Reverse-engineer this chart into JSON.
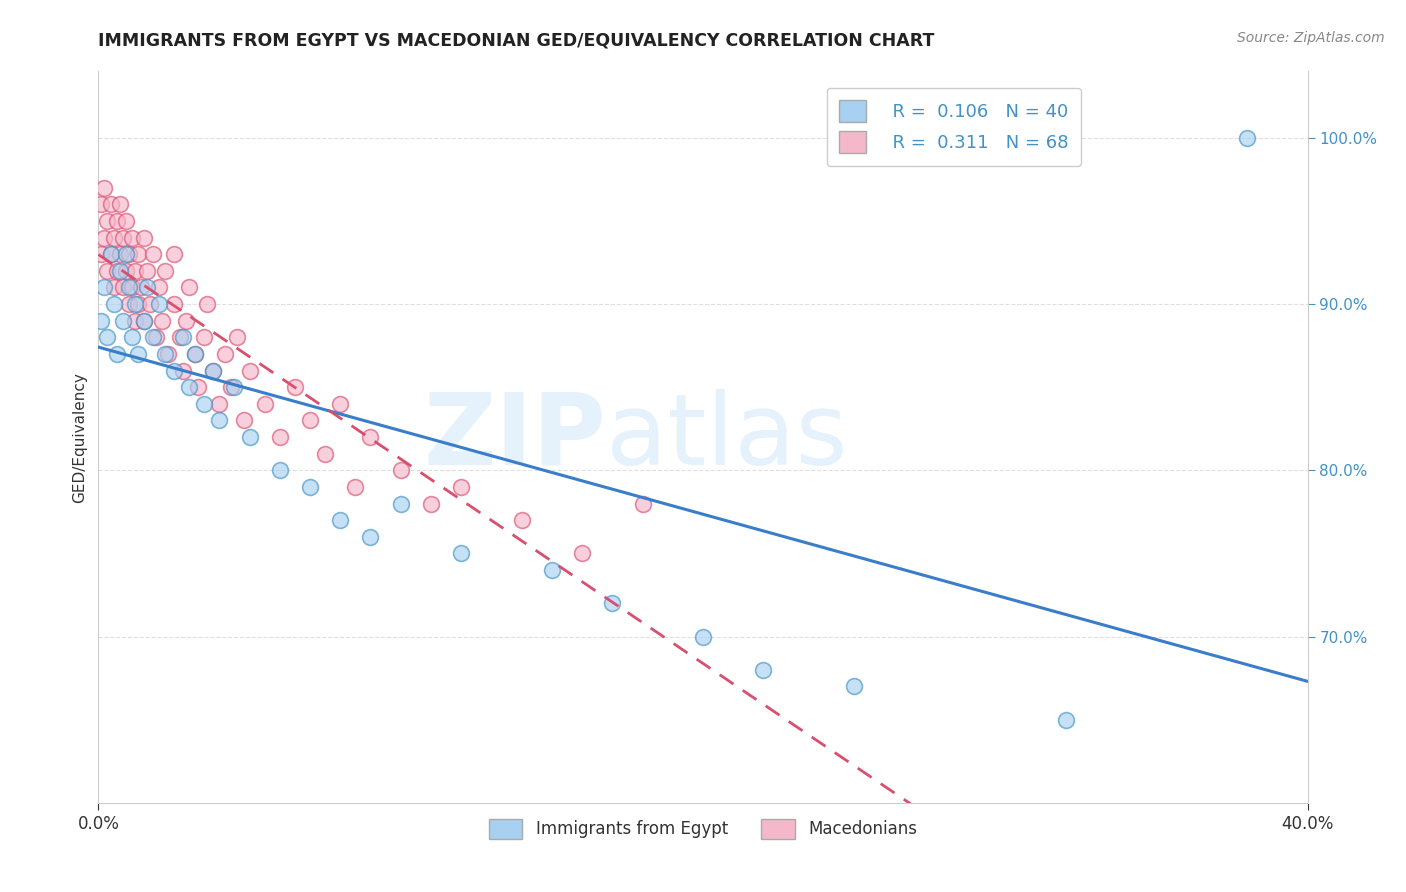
{
  "title": "IMMIGRANTS FROM EGYPT VS MACEDONIAN GED/EQUIVALENCY CORRELATION CHART",
  "source": "Source: ZipAtlas.com",
  "ylabel": "GED/Equivalency",
  "ytick_labels": [
    "100.0%",
    "90.0%",
    "80.0%",
    "70.0%"
  ],
  "ytick_values": [
    1.0,
    0.9,
    0.8,
    0.7
  ],
  "xmin": 0.0,
  "xmax": 0.4,
  "ymin": 0.6,
  "ymax": 1.04,
  "legend_r1": "R =  0.106",
  "legend_n1": "N = 40",
  "legend_r2": "R =  0.311",
  "legend_n2": "N = 68",
  "color_blue_fill": "#a8d0f0",
  "color_blue_edge": "#4292c6",
  "color_pink_fill": "#f5b8cb",
  "color_pink_edge": "#d94f6e",
  "color_blue_line": "#3a7dc9",
  "color_pink_line": "#d94f6e",
  "color_grid": "#d8d8d8",
  "watermark_zip": "ZIP",
  "watermark_atlas": "atlas",
  "egypt_x": [
    0.001,
    0.002,
    0.003,
    0.004,
    0.005,
    0.006,
    0.007,
    0.008,
    0.009,
    0.01,
    0.011,
    0.012,
    0.013,
    0.015,
    0.016,
    0.018,
    0.02,
    0.022,
    0.025,
    0.028,
    0.03,
    0.032,
    0.035,
    0.038,
    0.04,
    0.045,
    0.05,
    0.06,
    0.07,
    0.08,
    0.09,
    0.1,
    0.12,
    0.15,
    0.17,
    0.2,
    0.22,
    0.25,
    0.32,
    0.38
  ],
  "egypt_y": [
    0.89,
    0.91,
    0.88,
    0.93,
    0.9,
    0.87,
    0.92,
    0.89,
    0.93,
    0.91,
    0.88,
    0.9,
    0.87,
    0.89,
    0.91,
    0.88,
    0.9,
    0.87,
    0.86,
    0.88,
    0.85,
    0.87,
    0.84,
    0.86,
    0.83,
    0.85,
    0.82,
    0.8,
    0.79,
    0.77,
    0.76,
    0.78,
    0.75,
    0.74,
    0.72,
    0.7,
    0.68,
    0.67,
    0.65,
    1.0
  ],
  "macedonian_x": [
    0.001,
    0.001,
    0.002,
    0.002,
    0.003,
    0.003,
    0.004,
    0.004,
    0.005,
    0.005,
    0.006,
    0.006,
    0.007,
    0.007,
    0.008,
    0.008,
    0.009,
    0.009,
    0.01,
    0.01,
    0.011,
    0.011,
    0.012,
    0.012,
    0.013,
    0.013,
    0.014,
    0.015,
    0.015,
    0.016,
    0.017,
    0.018,
    0.019,
    0.02,
    0.021,
    0.022,
    0.023,
    0.025,
    0.025,
    0.027,
    0.028,
    0.029,
    0.03,
    0.032,
    0.033,
    0.035,
    0.036,
    0.038,
    0.04,
    0.042,
    0.044,
    0.046,
    0.048,
    0.05,
    0.055,
    0.06,
    0.065,
    0.07,
    0.075,
    0.08,
    0.085,
    0.09,
    0.1,
    0.11,
    0.12,
    0.14,
    0.16,
    0.18
  ],
  "macedonian_y": [
    0.96,
    0.93,
    0.97,
    0.94,
    0.95,
    0.92,
    0.96,
    0.93,
    0.94,
    0.91,
    0.95,
    0.92,
    0.93,
    0.96,
    0.91,
    0.94,
    0.92,
    0.95,
    0.93,
    0.9,
    0.91,
    0.94,
    0.92,
    0.89,
    0.93,
    0.9,
    0.91,
    0.94,
    0.89,
    0.92,
    0.9,
    0.93,
    0.88,
    0.91,
    0.89,
    0.92,
    0.87,
    0.9,
    0.93,
    0.88,
    0.86,
    0.89,
    0.91,
    0.87,
    0.85,
    0.88,
    0.9,
    0.86,
    0.84,
    0.87,
    0.85,
    0.88,
    0.83,
    0.86,
    0.84,
    0.82,
    0.85,
    0.83,
    0.81,
    0.84,
    0.79,
    0.82,
    0.8,
    0.78,
    0.79,
    0.77,
    0.75,
    0.78
  ]
}
